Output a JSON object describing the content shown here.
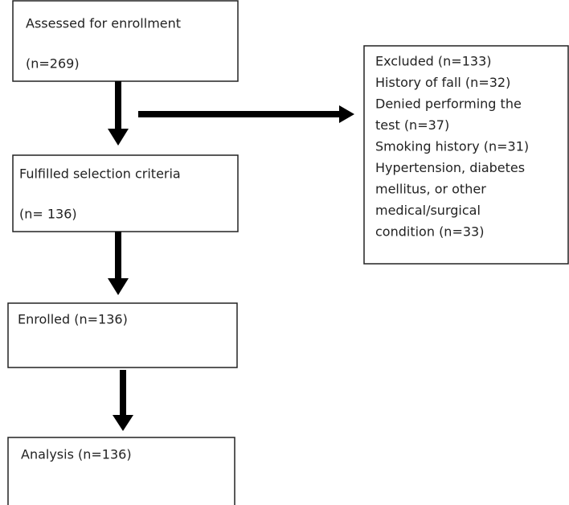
{
  "nodes": [
    {
      "lines": [
        "Assessed for enrollment",
        "(n=269)"
      ]
    },
    {
      "lines": [
        "Fulfilled selection criteria",
        "(n= 136)"
      ]
    },
    {
      "lines": [
        "Enrolled (n=136)"
      ]
    },
    {
      "lines": [
        "Analysis (n=136)"
      ]
    },
    {
      "lines": [
        "Excluded (n=133)",
        "History of fall (n=32)",
        "Denied performing the",
        "test (n=37)",
        "Smoking history (n=31)",
        "Hypertension, diabetes",
        "mellitus, or other",
        "medical/surgical",
        "condition (n=33)"
      ]
    }
  ]
}
